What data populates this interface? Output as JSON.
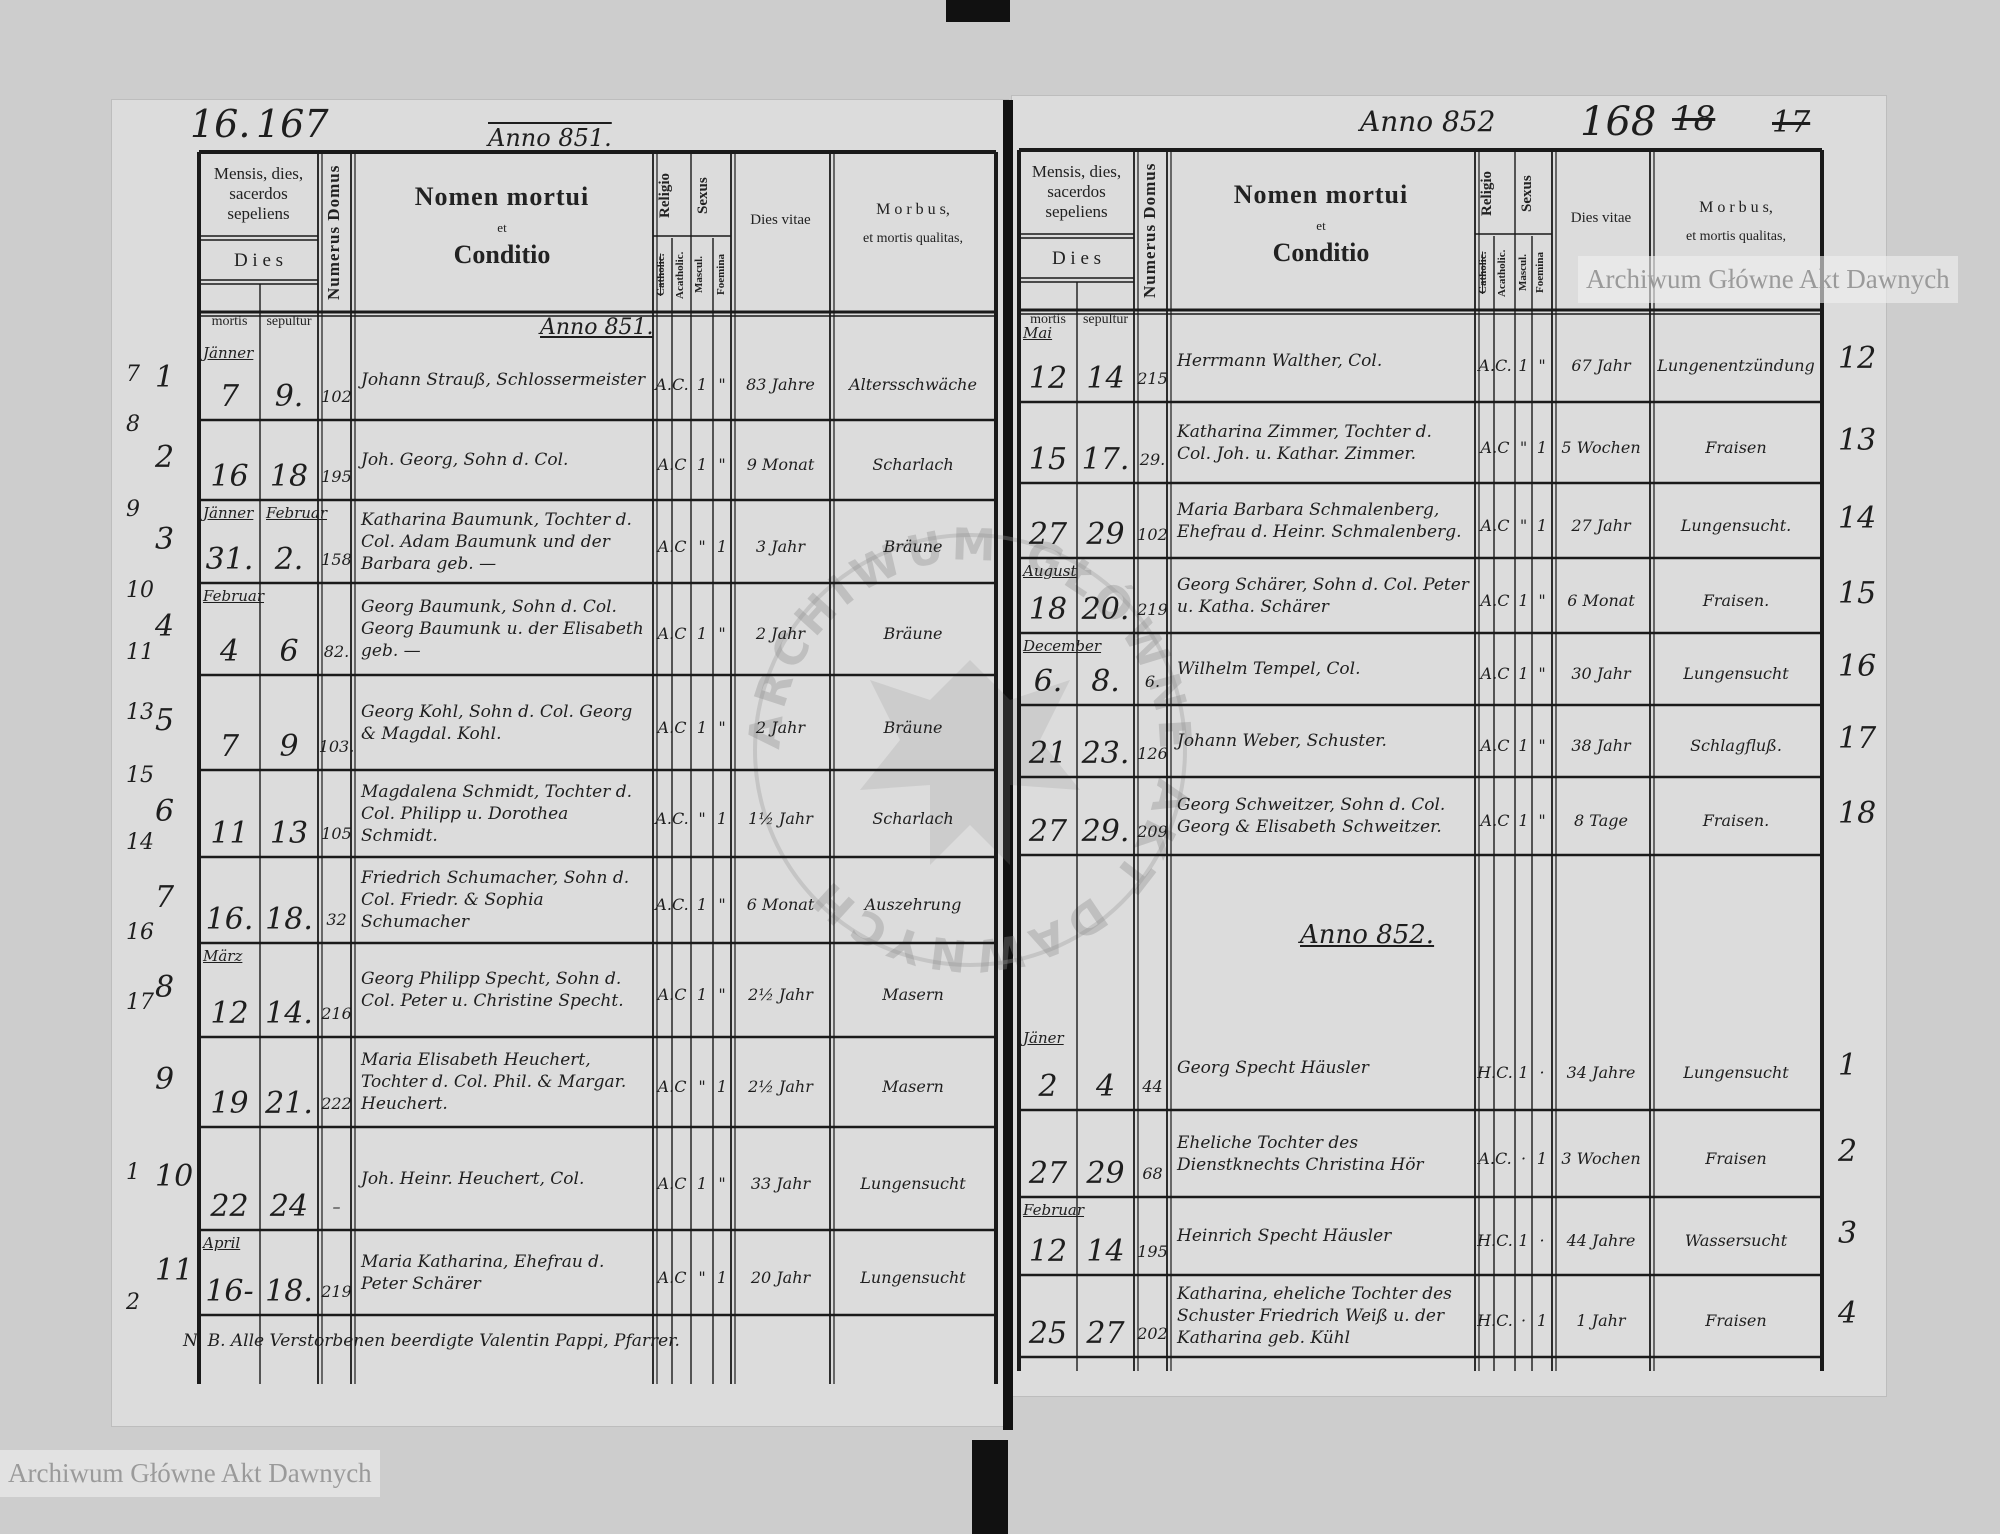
{
  "colors": {
    "paper": "#dcdcdc",
    "background": "#cdcdcd",
    "ink": "#1e1e1e",
    "binding": "#111111"
  },
  "header": {
    "mensis": "Mensis, dies, sacerdos sepeliens",
    "dies": "D i e s",
    "mortis": "mortis",
    "sepultur": "sepultur",
    "numerus_domus": "Numerus Domus",
    "nomen": "Nomen mortui",
    "et": "et",
    "conditio": "Conditio",
    "religio": "Religio",
    "catholic": "Catholic.",
    "acatholic": "Acatholic.",
    "sexus": "Sexus",
    "mascul": "Mascul.",
    "foemina": "Foemina",
    "dies_vitae": "Dies vitae",
    "morbus": "M o r b u s,",
    "qualitas": "et mortis qualitas,"
  },
  "left": {
    "page_mark": "16.",
    "page_number": "167",
    "year_heading": "Anno 851.",
    "section_heading": "Anno 851.",
    "outer_numbers": [
      "7",
      "8",
      "9",
      "10",
      "11",
      "13",
      "15",
      "14",
      "16",
      "17",
      "1",
      "2"
    ],
    "entries": [
      {
        "num": "1",
        "month": "Jänner",
        "death": "7",
        "burial": "9.",
        "house": "102",
        "name": "Johann Strauß, Schlossermeister",
        "rel": "A.C.",
        "m": "1",
        "f": "\"",
        "age": "83 Jahre",
        "cause": "Altersschwäche"
      },
      {
        "num": "2",
        "month": "",
        "death": "16",
        "burial": "18",
        "house": "195",
        "name": "Joh. Georg, Sohn d. Col.",
        "rel": "A.C",
        "m": "1",
        "f": "\"",
        "age": "9 Monat",
        "cause": "Scharlach"
      },
      {
        "num": "3",
        "month": "Jänner",
        "month2": "Februar",
        "death": "31.",
        "burial": "2.",
        "house": "158",
        "name": "Katharina Baumunk, Tochter d. Col. Adam Baumunk und der Barbara geb. —",
        "rel": "A.C",
        "m": "\"",
        "f": "1",
        "age": "3 Jahr",
        "cause": "Bräune"
      },
      {
        "num": "4",
        "month": "Februar",
        "death": "4",
        "burial": "6",
        "house": "82.",
        "name": "Georg Baumunk, Sohn d. Col. Georg Baumunk u. der Elisabeth geb. —",
        "rel": "A.C",
        "m": "1",
        "f": "\"",
        "age": "2 Jahr",
        "cause": "Bräune"
      },
      {
        "num": "5",
        "month": "",
        "death": "7",
        "burial": "9",
        "house": "103.",
        "name": "Georg Kohl, Sohn d. Col. Georg & Magdal. Kohl.",
        "rel": "A.C",
        "m": "1",
        "f": "\"",
        "age": "2 Jahr",
        "cause": "Bräune"
      },
      {
        "num": "6",
        "month": "",
        "death": "11",
        "burial": "13",
        "house": "105",
        "name": "Magdalena Schmidt, Tochter d. Col. Philipp u. Dorothea Schmidt.",
        "rel": "A.C.",
        "m": "\"",
        "f": "1",
        "age": "1½ Jahr",
        "cause": "Scharlach"
      },
      {
        "num": "7",
        "month": "",
        "death": "16.",
        "burial": "18.",
        "house": "32",
        "name": "Friedrich Schumacher, Sohn d. Col. Friedr. & Sophia Schumacher",
        "rel": "A.C.",
        "m": "1",
        "f": "\"",
        "age": "6 Monat",
        "cause": "Auszehrung"
      },
      {
        "num": "8",
        "month": "März",
        "death": "12",
        "burial": "14.",
        "house": "216",
        "name": "Georg Philipp Specht, Sohn d. Col. Peter u. Christine Specht.",
        "rel": "A.C",
        "m": "1",
        "f": "\"",
        "age": "2½ Jahr",
        "cause": "Masern"
      },
      {
        "num": "9",
        "month": "",
        "death": "19",
        "burial": "21.",
        "house": "222",
        "name": "Maria Elisabeth Heuchert, Tochter d. Col. Phil. & Margar. Heuchert.",
        "rel": "A.C",
        "m": "\"",
        "f": "1",
        "age": "2½ Jahr",
        "cause": "Masern"
      },
      {
        "num": "10",
        "month": "",
        "death": "22",
        "burial": "24",
        "house": "–",
        "name": "Joh. Heinr. Heuchert, Col.",
        "rel": "A.C",
        "m": "1",
        "f": "\"",
        "age": "33 Jahr",
        "cause": "Lungensucht"
      },
      {
        "num": "11",
        "month": "April",
        "death": "16-",
        "burial": "18.",
        "house": "219",
        "name": "Maria Katharina, Ehefrau d. Peter Schärer",
        "rel": "A.C",
        "m": "\"",
        "f": "1",
        "age": "20 Jahr",
        "cause": "Lungensucht"
      }
    ],
    "footnote": "N. B. Alle Verstorbenen beerdigte Valentin Pappi, Pfarrer."
  },
  "right": {
    "year_heading": "Anno 852",
    "page_number": "168",
    "struck_numbers": [
      "18",
      "17"
    ],
    "section_heading": "Anno 852.",
    "entries": [
      {
        "num": "12",
        "month": "Mai",
        "death": "12",
        "burial": "14",
        "house": "215",
        "name": "Herrmann Walther, Col.",
        "rel": "A.C.",
        "m": "1",
        "f": "\"",
        "age": "67 Jahr",
        "cause": "Lungenentzündung"
      },
      {
        "num": "13",
        "month": "",
        "death": "15",
        "burial": "17.",
        "house": "29.",
        "name": "Katharina Zimmer, Tochter d. Col. Joh. u. Kathar. Zimmer.",
        "rel": "A.C",
        "m": "\"",
        "f": "1",
        "age": "5 Wochen",
        "cause": "Fraisen"
      },
      {
        "num": "14",
        "month": "",
        "death": "27",
        "burial": "29",
        "house": "102",
        "name": "Maria Barbara Schmalenberg, Ehefrau d. Heinr. Schmalenberg.",
        "rel": "A.C",
        "m": "\"",
        "f": "1",
        "age": "27 Jahr",
        "cause": "Lungensucht."
      },
      {
        "num": "15",
        "month": "August",
        "death": "18",
        "burial": "20.",
        "house": "219",
        "name": "Georg Schärer, Sohn d. Col. Peter u. Katha. Schärer",
        "rel": "A.C",
        "m": "1",
        "f": "\"",
        "age": "6 Monat",
        "cause": "Fraisen."
      },
      {
        "num": "16",
        "month": "December",
        "death": "6.",
        "burial": "8.",
        "house": "6.",
        "name": "Wilhelm Tempel, Col.",
        "rel": "A.C",
        "m": "1",
        "f": "\"",
        "age": "30 Jahr",
        "cause": "Lungensucht"
      },
      {
        "num": "17",
        "month": "",
        "death": "21",
        "burial": "23.",
        "house": "126",
        "name": "Johann Weber, Schuster.",
        "rel": "A.C",
        "m": "1",
        "f": "\"",
        "age": "38 Jahr",
        "cause": "Schlagfluß."
      },
      {
        "num": "18",
        "month": "",
        "death": "27",
        "burial": "29.",
        "house": "209",
        "name": "Georg Schweitzer, Sohn d. Col. Georg & Elisabeth Schweitzer.",
        "rel": "A.C",
        "m": "1",
        "f": "\"",
        "age": "8 Tage",
        "cause": "Fraisen."
      },
      {
        "num": "1",
        "month": "Jäner",
        "death": "2",
        "burial": "4",
        "house": "44",
        "name": "Georg Specht Häusler",
        "rel": "H.C.",
        "m": "1",
        "f": "·",
        "age": "34 Jahre",
        "cause": "Lungensucht"
      },
      {
        "num": "2",
        "month": "",
        "death": "27",
        "burial": "29",
        "house": "68",
        "name": "Eheliche Tochter des Dienstknechts Christina Hör",
        "rel": "A.C.",
        "m": "·",
        "f": "1",
        "age": "3 Wochen",
        "cause": "Fraisen"
      },
      {
        "num": "3",
        "month": "Februar",
        "death": "12",
        "burial": "14",
        "house": "195",
        "name": "Heinrich Specht Häusler",
        "rel": "H.C.",
        "m": "1",
        "f": "·",
        "age": "44 Jahre",
        "cause": "Wassersucht"
      },
      {
        "num": "4",
        "month": "",
        "death": "25",
        "burial": "27",
        "house": "202",
        "name": "Katharina, eheliche Tochter des Schuster Friedrich Weiß u. der Katharina geb. Kühl",
        "rel": "H.C.",
        "m": "·",
        "f": "1",
        "age": "1 Jahr",
        "cause": "Fraisen"
      }
    ]
  },
  "watermark": {
    "text": "Archiwum Główne Akt Dawnych",
    "stamp_text": "ARCHIWUM GŁÓWNE AKT DAWNYCH"
  }
}
